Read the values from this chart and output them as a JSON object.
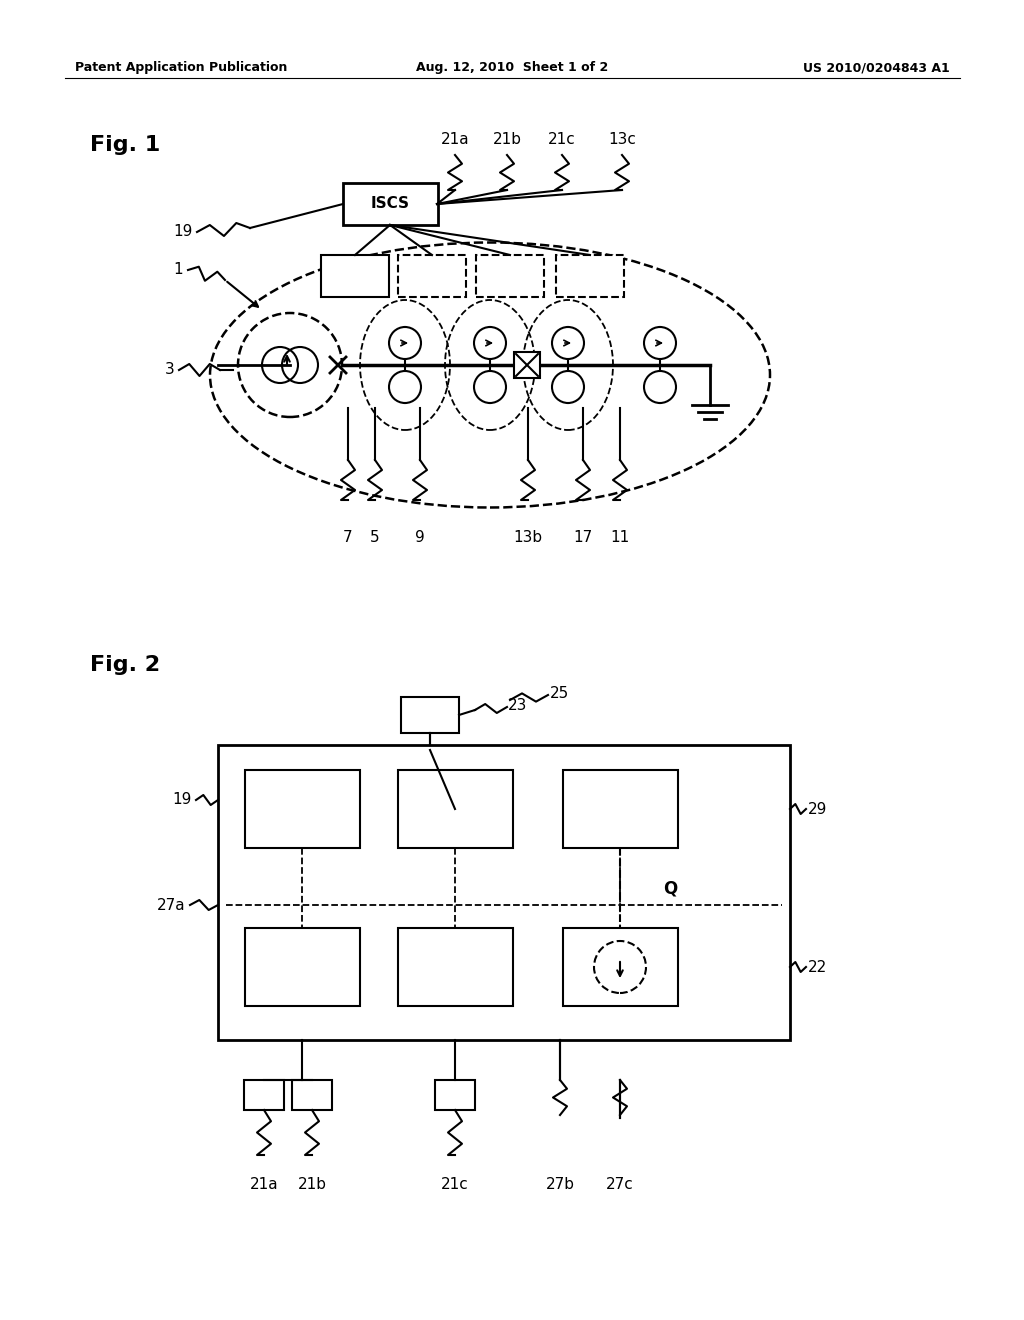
{
  "header_left": "Patent Application Publication",
  "header_mid": "Aug. 12, 2010  Sheet 1 of 2",
  "header_right": "US 2010/0204843 A1",
  "fig1_label": "Fig. 1",
  "fig2_label": "Fig. 2",
  "bg_color": "#ffffff"
}
